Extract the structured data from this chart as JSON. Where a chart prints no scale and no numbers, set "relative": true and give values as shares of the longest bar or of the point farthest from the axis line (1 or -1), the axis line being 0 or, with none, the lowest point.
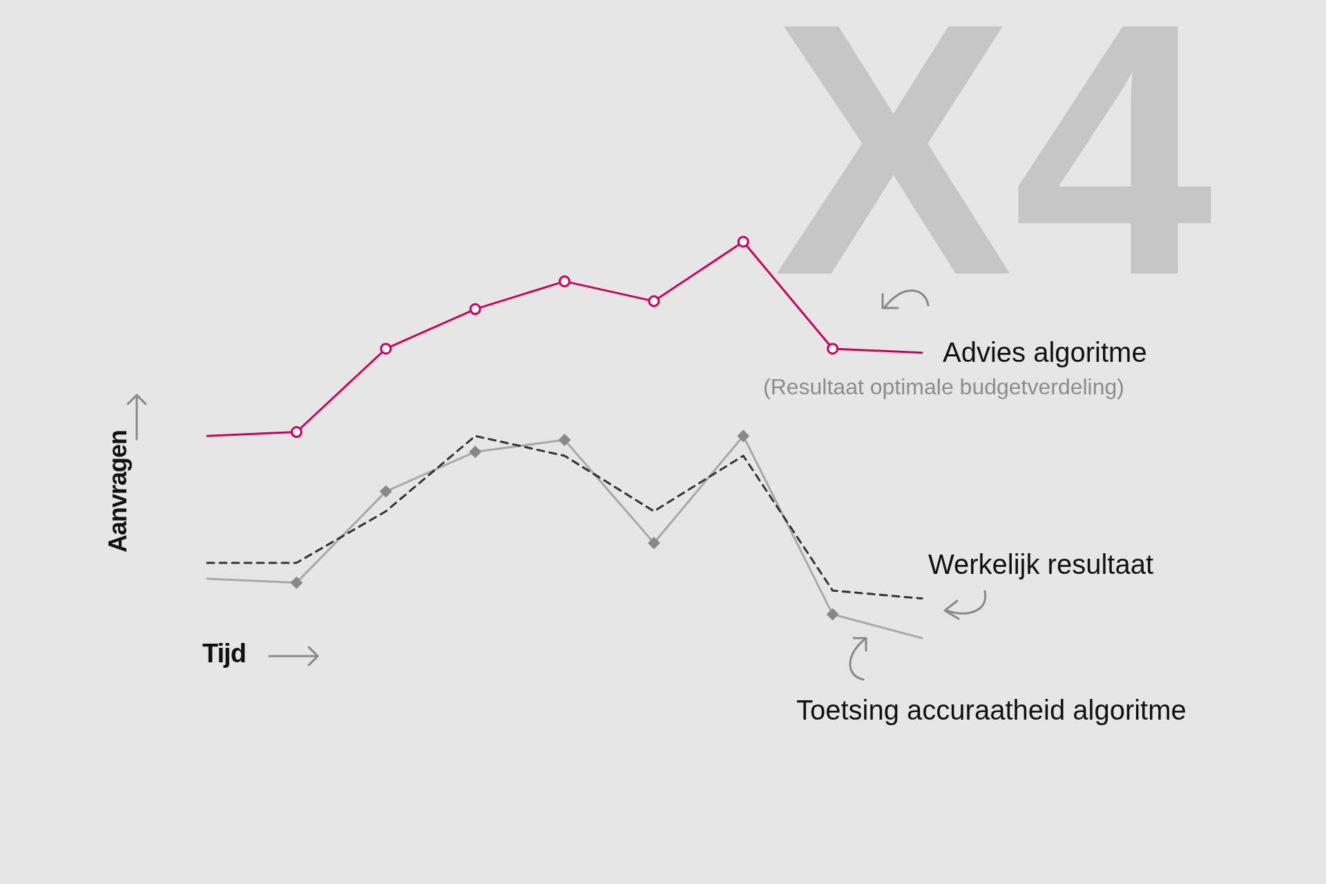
{
  "chart_data": {
    "type": "line",
    "relative": true,
    "xlabel": "Tijd",
    "ylabel": "Aanvragen",
    "legend": "right",
    "grid": false,
    "categories": [
      null,
      null,
      null,
      null,
      null,
      null,
      null,
      null,
      null
    ],
    "annotations": [
      "(Resultaat optimale budgetverdeling)",
      "X4"
    ],
    "series": [
      {
        "name": "Advies algoritme",
        "color": "#c8005a",
        "marker": "circle",
        "line_style": "solid",
        "values": [
          0.51,
          0.52,
          0.73,
          0.83,
          0.9,
          0.85,
          1,
          0.73,
          0.72
        ]
      },
      {
        "name": "Toetsing accuraatheid algoritme",
        "color": "#a8a8a8",
        "marker": "diamond",
        "line_style": "solid",
        "values": [
          0.15,
          0.14,
          0.37,
          0.47,
          0.5,
          0.24,
          0.51,
          0.06,
          0
        ]
      },
      {
        "name": "Werkelijk resultaat",
        "color": "#333333",
        "marker": "none",
        "line_style": "dashed",
        "values": [
          0.19,
          0.19,
          0.32,
          0.51,
          0.46,
          0.32,
          0.46,
          0.12,
          0.1
        ]
      }
    ]
  }
}
